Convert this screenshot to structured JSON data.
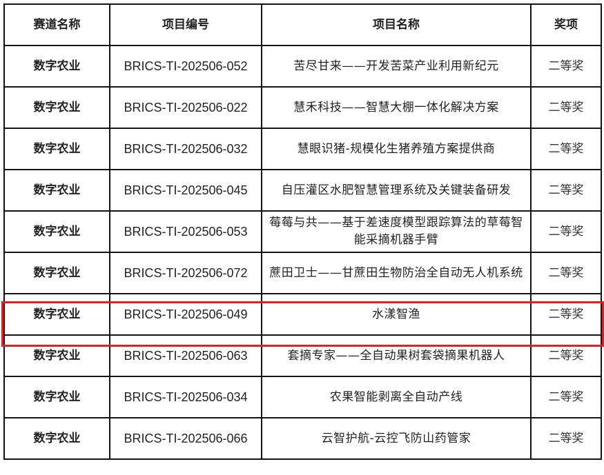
{
  "table": {
    "headers": [
      "赛道名称",
      "项目编号",
      "项目名称",
      "奖项"
    ],
    "rows": [
      {
        "track": "数字农业",
        "code": "BRICS-TI-202506-052",
        "name": "苦尽甘来——开发苦菜产业利用新纪元",
        "award": "二等奖"
      },
      {
        "track": "数字农业",
        "code": "BRICS-TI-202506-022",
        "name": "慧禾科技——智慧大棚一体化解决方案",
        "award": "二等奖"
      },
      {
        "track": "数字农业",
        "code": "BRICS-TI-202506-032",
        "name": "慧眼识猪-规模化生猪养殖方案提供商",
        "award": "二等奖"
      },
      {
        "track": "数字农业",
        "code": "BRICS-TI-202506-045",
        "name": "自压灌区水肥智慧管理系统及关键装备研发",
        "award": "二等奖"
      },
      {
        "track": "数字农业",
        "code": "BRICS-TI-202506-053",
        "name": "莓莓与共——基于差速度模型跟踪算法的草莓智能采摘机器手臂",
        "award": "二等奖"
      },
      {
        "track": "数字农业",
        "code": "BRICS-TI-202506-072",
        "name": "蔗田卫士——甘蔗田生物防治全自动无人机系统",
        "award": "二等奖"
      },
      {
        "track": "数字农业",
        "code": "BRICS-TI-202506-049",
        "name": "水漾智渔",
        "award": "二等奖"
      },
      {
        "track": "数字农业",
        "code": "BRICS-TI-202506-063",
        "name": "套摘专家——全自动果树套袋摘果机器人",
        "award": "二等奖"
      },
      {
        "track": "数字农业",
        "code": "BRICS-TI-202506-034",
        "name": "农果智能剥离全自动产线",
        "award": "二等奖"
      },
      {
        "track": "数字农业",
        "code": "BRICS-TI-202506-066",
        "name": "云智护航-云控飞防山药管家",
        "award": "二等奖"
      }
    ],
    "highlighted_row": 6,
    "highlight_color": "#e02020"
  }
}
